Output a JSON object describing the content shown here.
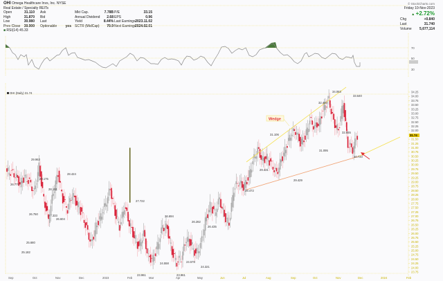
{
  "header": {
    "symbol": "OHI",
    "company": "Omega Healthcare Invs, Inc. NYSE",
    "sector": "Real Estate / Specialty REITs",
    "rsi_label": "RSI(14) 45.33",
    "quote_left": [
      {
        "label": "Open",
        "value": "31.110"
      },
      {
        "label": "High",
        "value": "31.870"
      },
      {
        "label": "Low",
        "value": "30.980"
      },
      {
        "label": "Prev Close",
        "value": "30.900"
      }
    ],
    "quote_mid1": [
      {
        "label": "Ask",
        "value": ""
      },
      {
        "label": "Bid",
        "value": ""
      },
      {
        "label": "Last",
        "value": ""
      },
      {
        "label": "Optionable",
        "value": "yes"
      }
    ],
    "quote_mid2": [
      {
        "label": "Mkt Cap.",
        "value": "7.78B"
      },
      {
        "label": "Annual Dividend",
        "value": "2.68"
      },
      {
        "label": "Yield",
        "value": "8.44%"
      },
      {
        "label": "SCTR (MidCap)",
        "value": "70.9"
      }
    ],
    "quote_right": [
      {
        "label": "P/E",
        "value": "33.15"
      },
      {
        "label": "EPS",
        "value": "0.96"
      },
      {
        "label": "Last Earnings",
        "value": "2023.11.02"
      },
      {
        "label": "Next Earnings",
        "value": "2024.02.01"
      }
    ],
    "source": "© StockCharts.com",
    "date": "Friday 10-Nov-2023",
    "pct_change": "+2.72%",
    "chg_label": "Chg",
    "chg": "+0.840",
    "last_label": "Last",
    "last": "31.740",
    "volume_label": "Volume",
    "volume": "5,677,114"
  },
  "price_panel": {
    "legend": "OHI (Daily) 31.74",
    "current_price_tag": "31.74",
    "wedge_label": "Wedge"
  },
  "chart_data": [
    {
      "type": "line",
      "title": "RSI(14)",
      "ylim": [
        30,
        70
      ],
      "reference_lines": [
        30,
        50,
        70
      ],
      "y_ticks": [
        "70",
        "50",
        "30"
      ],
      "last_value": 45.33
    },
    {
      "type": "candlestick",
      "title": "OHI (Daily) 31.74",
      "ylim": [
        23.75,
        34.25
      ],
      "y_ticks": [
        "34.25",
        "34.00",
        "33.75",
        "33.50",
        "33.25",
        "33.00",
        "32.75",
        "32.50",
        "32.25",
        "32.00",
        "31.75",
        "31.50",
        "31.25",
        "31.00",
        "30.75",
        "30.50",
        "30.25",
        "30.00",
        "29.75",
        "29.50",
        "29.25",
        "29.00",
        "28.75",
        "28.50",
        "28.25",
        "28.00",
        "27.75",
        "27.50",
        "27.25",
        "27.00",
        "26.75",
        "26.50",
        "26.25",
        "26.00",
        "25.75",
        "25.50",
        "25.25",
        "25.00",
        "24.75",
        "24.50",
        "24.25",
        "24.00",
        "23.75"
      ],
      "x_ticks": [
        "Sep",
        "Oct",
        "Nov",
        "Dec",
        "2023",
        "Feb",
        "Mar",
        "Apr",
        "May",
        "Jun",
        "Jul",
        "Aug",
        "Sep",
        "Oct",
        "Nov",
        "Dec",
        "2024",
        "Feb"
      ],
      "annotations": [
        {
          "text": "26.777",
          "kind": "low"
        },
        {
          "text": "29.963",
          "kind": "high"
        },
        {
          "text": "25.182",
          "kind": "low"
        },
        {
          "text": "26.750",
          "kind": "low"
        },
        {
          "text": "29.175",
          "kind": "high"
        },
        {
          "text": "26.604",
          "kind": "low"
        },
        {
          "text": "28.424",
          "kind": "high"
        },
        {
          "text": "27.333",
          "kind": "low"
        },
        {
          "text": "25.680",
          "kind": "low"
        },
        {
          "text": "28.191",
          "kind": "high"
        },
        {
          "text": "27.722",
          "kind": "high"
        },
        {
          "text": "23.961",
          "kind": "low"
        },
        {
          "text": "26.694",
          "kind": "high"
        },
        {
          "text": "24.558",
          "kind": "low"
        },
        {
          "text": "26.282",
          "kind": "high"
        },
        {
          "text": "23.961",
          "kind": "low"
        },
        {
          "text": "24.578",
          "kind": "low"
        },
        {
          "text": "24.321",
          "kind": "low"
        },
        {
          "text": "26.435",
          "kind": "low"
        },
        {
          "text": "29.431",
          "kind": "high"
        },
        {
          "text": "28.472",
          "kind": "low"
        },
        {
          "text": "31.106",
          "kind": "high"
        },
        {
          "text": "29.429",
          "kind": "low"
        },
        {
          "text": "32.440",
          "kind": "high"
        },
        {
          "text": "31.095",
          "kind": "low"
        },
        {
          "text": "34.063",
          "kind": "high"
        },
        {
          "text": "33.640",
          "kind": "high"
        },
        {
          "text": "32.655",
          "kind": "low"
        },
        {
          "text": "30.720",
          "kind": "low"
        }
      ],
      "trendlines": [
        {
          "name": "wedge-upper",
          "from_date": "Jun",
          "to_date": "Oct"
        },
        {
          "name": "wedge-lower",
          "from_date": "Jun",
          "to_date": "Dec"
        }
      ],
      "last": 31.74,
      "close_approx": [
        29.6,
        29.4,
        28.9,
        29.3,
        29.0,
        28.4,
        29.9,
        28.0,
        26.8,
        28.4,
        29.5,
        28.0,
        27.4,
        28.3,
        27.7,
        27.2,
        26.3,
        25.4,
        26.4,
        27.0,
        27.7,
        28.6,
        27.2,
        26.4,
        27.6,
        26.6,
        25.8,
        25.2,
        26.0,
        24.6,
        24.5,
        25.3,
        26.4,
        26.3,
        24.9,
        24.3,
        24.6,
        25.7,
        25.4,
        24.8,
        25.3,
        26.7,
        27.6,
        27.2,
        28.0,
        27.0,
        26.6,
        28.6,
        29.0,
        28.7,
        29.2,
        30.2,
        30.9,
        30.3,
        30.4,
        30.0,
        29.5,
        30.3,
        31.0,
        31.8,
        32.0,
        31.3,
        31.6,
        32.6,
        32.2,
        32.5,
        33.4,
        33.8,
        32.5,
        32.0,
        33.6,
        31.2,
        30.9,
        31.7
      ]
    }
  ],
  "x_axis": {
    "labels": [
      "Sep",
      "Oct",
      "Nov",
      "Dec",
      "2023",
      "Feb",
      "Mar",
      "Apr",
      "May",
      "Jun",
      "Jul",
      "Aug",
      "Sep",
      "Oct",
      "Nov",
      "Dec",
      "2024",
      "Feb"
    ]
  }
}
